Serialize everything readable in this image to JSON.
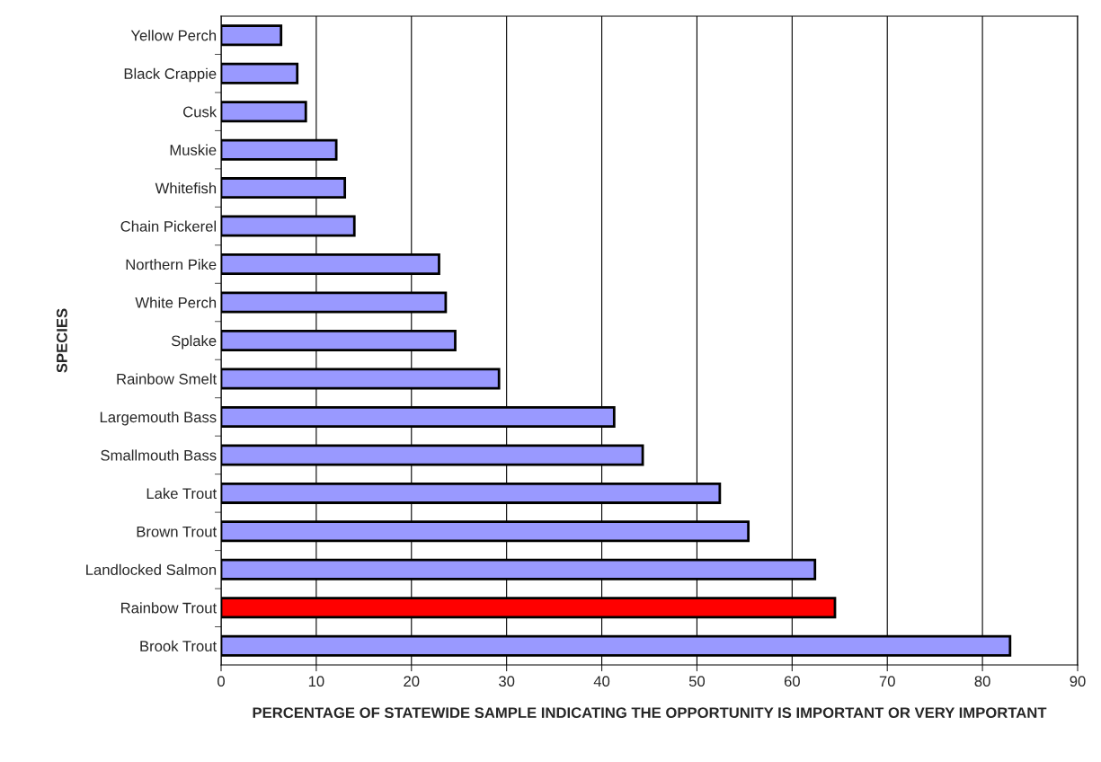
{
  "chart_data": {
    "type": "bar",
    "orientation": "horizontal",
    "categories": [
      "Yellow Perch",
      "Black Crappie",
      "Cusk",
      "Muskie",
      "Whitefish",
      "Chain Pickerel",
      "Northern Pike",
      "White Perch",
      "Splake",
      "Rainbow Smelt",
      "Largemouth Bass",
      "Smallmouth Bass",
      "Lake Trout",
      "Brown Trout",
      "Landlocked Salmon",
      "Rainbow Trout",
      "Brook Trout"
    ],
    "values": [
      6.3,
      8.0,
      8.9,
      12.1,
      13.0,
      14.0,
      22.9,
      23.6,
      24.6,
      29.2,
      41.3,
      44.3,
      52.4,
      55.4,
      62.4,
      64.5,
      82.9
    ],
    "colors": [
      "#9999ff",
      "#9999ff",
      "#9999ff",
      "#9999ff",
      "#9999ff",
      "#9999ff",
      "#9999ff",
      "#9999ff",
      "#9999ff",
      "#9999ff",
      "#9999ff",
      "#9999ff",
      "#9999ff",
      "#9999ff",
      "#9999ff",
      "#ff0000",
      "#9999ff"
    ],
    "xlim": [
      0,
      90
    ],
    "xticks": [
      0,
      10,
      20,
      30,
      40,
      50,
      60,
      70,
      80,
      90
    ],
    "xlabel": "PERCENTAGE OF STATEWIDE SAMPLE INDICATING THE OPPORTUNITY IS IMPORTANT OR VERY IMPORTANT",
    "ylabel": "SPECIES",
    "grid": "x",
    "legend": false
  }
}
